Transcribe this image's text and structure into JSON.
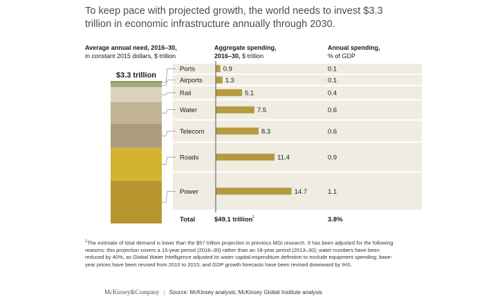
{
  "title": "To keep pace with projected growth, the world needs to invest $3.3 trillion in economic infrastructure annually through 2030.",
  "headers": {
    "col1_bold": "Average annual need, 2016–30,",
    "col1_sub": "in constant 2015 dollars, $ trillion",
    "col2_bold": "Aggregate spending,",
    "col2_sub_bold": "2016–30,",
    "col2_sub": "$ trillion",
    "col3_bold": "Annual spending,",
    "col3_sub": "% of GDP"
  },
  "colors": {
    "row_band": "#efece2",
    "bar": "#b49a42",
    "axis": "#555555",
    "ports": "#8f9e6a",
    "airports": "#a8ab7d",
    "rail": "#ddd3bd",
    "water": "#c1b396",
    "telecom": "#ad9c7c",
    "roads": "#d2b42e",
    "power": "#b8962f"
  },
  "chart_data": {
    "type": "bar",
    "title": "To keep pace with projected growth, the world needs to invest $3.3 trillion in economic infrastructure annually through 2030.",
    "stack_label": "$3.3 trillion",
    "categories": [
      "Ports",
      "Airports",
      "Rail",
      "Water",
      "Telecom",
      "Roads",
      "Power"
    ],
    "series": [
      {
        "name": "Aggregate spending, 2016–30, $ trillion",
        "values": [
          0.9,
          1.3,
          5.1,
          7.5,
          8.3,
          11.4,
          14.7
        ]
      },
      {
        "name": "Annual spending, % of GDP",
        "values": [
          0.1,
          0.1,
          0.4,
          0.6,
          0.6,
          0.9,
          1.1
        ]
      }
    ],
    "value_labels": [
      "0.9",
      "1.3",
      "5.1",
      "7.5",
      "8.3",
      "11.4",
      "14.7"
    ],
    "gdp_labels": [
      "0.1",
      "0.1",
      "0.4",
      "0.6",
      "0.6",
      "0.9",
      "1.1"
    ],
    "total": {
      "label": "Total",
      "aggregate_label": "$49.1 trillion",
      "footnote_mark": "1",
      "gdp_label": "3.8%"
    },
    "xlim": [
      0,
      15
    ]
  },
  "footnote": {
    "mark": "1",
    "text": "The estimate of total demand is lower than the $57 trillion projection in previous MGI research. It has been adjusted for the following reasons: this projection covers a 15-year period (2016–30) rather than an 18-year period (2013–30); water numbers have been reduced by 40%, as Global Water Intelligence adjusted its water capital-expenditure definition to exclude equipment spending; base-year prices have been revised from 2010 to 2015; and GDP growth forecasts have been revised downward by IHS."
  },
  "source": {
    "brand": "McKinsey&Company",
    "divider": "|",
    "text": "Source: McKinsey analysis; McKinsey Global Institute analysis"
  }
}
